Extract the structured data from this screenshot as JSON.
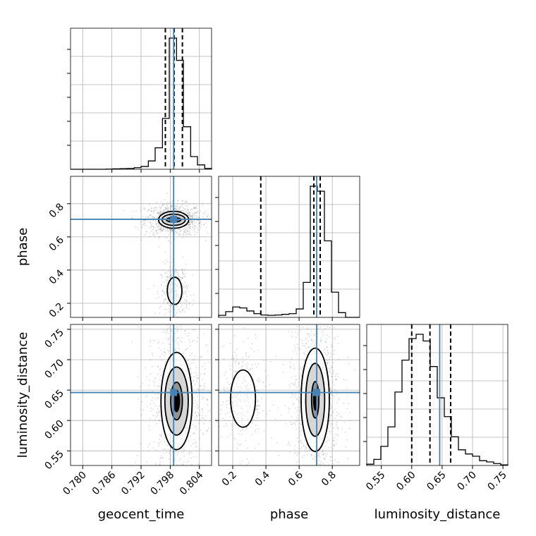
{
  "colors": {
    "truth": "#4682b4",
    "line": "#000000",
    "grid": "#b0b0b0",
    "scatter": "#555555"
  },
  "chart_data": {
    "type": "corner",
    "parameters": [
      "geocent_time",
      "phase",
      "luminosity_distance"
    ],
    "axis_labels": {
      "geocent_time": "geocent_time",
      "phase": "phase",
      "luminosity_distance": "luminosity_distance"
    },
    "ranges": {
      "geocent_time": [
        0.7775,
        0.8065
      ],
      "phase": [
        0.115,
        0.965
      ],
      "luminosity_distance": [
        0.526,
        0.758
      ]
    },
    "ticks": {
      "geocent_time": [
        "0.780",
        "0.786",
        "0.792",
        "0.798",
        "0.804"
      ],
      "phase": [
        "0.2",
        "0.4",
        "0.6",
        "0.8"
      ],
      "luminosity_distance": [
        "0.55",
        "0.60",
        "0.65",
        "0.70",
        "0.75"
      ]
    },
    "tick_values": {
      "geocent_time": [
        0.78,
        0.786,
        0.792,
        0.798,
        0.804
      ],
      "phase": [
        0.2,
        0.4,
        0.6,
        0.8
      ],
      "luminosity_distance": [
        0.55,
        0.6,
        0.65,
        0.7,
        0.75
      ]
    },
    "truths": {
      "geocent_time": 0.7987,
      "phase": 0.706,
      "luminosity_distance": 0.646
    },
    "quantiles": {
      "geocent_time": [
        0.797,
        0.7988,
        0.8005
      ],
      "phase": [
        0.369,
        0.689,
        0.727
      ],
      "luminosity_distance": [
        0.6,
        0.63,
        0.664
      ]
    },
    "histograms": {
      "geocent_time": {
        "bin_edges": [
          0.7775,
          0.779,
          0.7804,
          0.7819,
          0.7833,
          0.7848,
          0.7862,
          0.7877,
          0.7891,
          0.7906,
          0.792,
          0.7935,
          0.7949,
          0.7964,
          0.7978,
          0.7993,
          0.8007,
          0.8022,
          0.8036,
          0.8051,
          0.8065
        ],
        "counts": [
          0,
          0,
          0,
          0,
          0,
          1,
          2,
          3,
          4,
          8,
          14,
          42,
          108,
          256,
          660,
          548,
          214,
          64,
          22,
          4
        ]
      },
      "phase": {
        "bin_edges": [
          0.115,
          0.1575,
          0.2,
          0.2425,
          0.285,
          0.3275,
          0.37,
          0.4125,
          0.455,
          0.4975,
          0.54,
          0.5825,
          0.625,
          0.6675,
          0.71,
          0.7525,
          0.795,
          0.8375,
          0.88,
          0.9225,
          0.965
        ],
        "counts": [
          12,
          34,
          62,
          56,
          38,
          22,
          14,
          12,
          14,
          18,
          22,
          50,
          208,
          780,
          750,
          455,
          150,
          28,
          0,
          0
        ]
      },
      "luminosity_distance": {
        "bin_edges": [
          0.526,
          0.5376,
          0.5492,
          0.5608,
          0.5724,
          0.584,
          0.5956,
          0.6072,
          0.6188,
          0.6304,
          0.642,
          0.6536,
          0.6652,
          0.6768,
          0.6884,
          0.7,
          0.7116,
          0.7232,
          0.7348,
          0.7464,
          0.758
        ],
        "counts": [
          8,
          38,
          120,
          242,
          460,
          660,
          795,
          822,
          780,
          620,
          424,
          306,
          180,
          98,
          72,
          58,
          30,
          22,
          12,
          4
        ]
      }
    },
    "density_2d": {
      "phase_vs_geocent_time": {
        "modes": [
          {
            "x": 0.7987,
            "y": 0.703,
            "levels": [
              [
                0.0031,
                0.051
              ],
              [
                0.0024,
                0.034
              ],
              [
                0.0015,
                0.014
              ]
            ]
          },
          {
            "x": 0.7989,
            "y": 0.275,
            "levels": [
              [
                0.0015,
                0.082
              ]
            ]
          }
        ]
      },
      "luminosity_distance_vs_geocent_time": {
        "modes": [
          {
            "x": 0.7993,
            "y": 0.632,
            "levels": [
              [
                0.0032,
                0.08
              ],
              [
                0.0024,
                0.056
              ],
              [
                0.0012,
                0.031
              ]
            ]
          }
        ]
      },
      "luminosity_distance_vs_phase": {
        "modes": [
          {
            "x": 0.697,
            "y": 0.634,
            "levels": [
              [
                0.085,
                0.085
              ],
              [
                0.057,
                0.06
              ],
              [
                0.022,
                0.03
              ]
            ]
          },
          {
            "x": 0.262,
            "y": 0.636,
            "levels": [
              [
                0.075,
                0.047
              ]
            ]
          }
        ]
      }
    }
  }
}
